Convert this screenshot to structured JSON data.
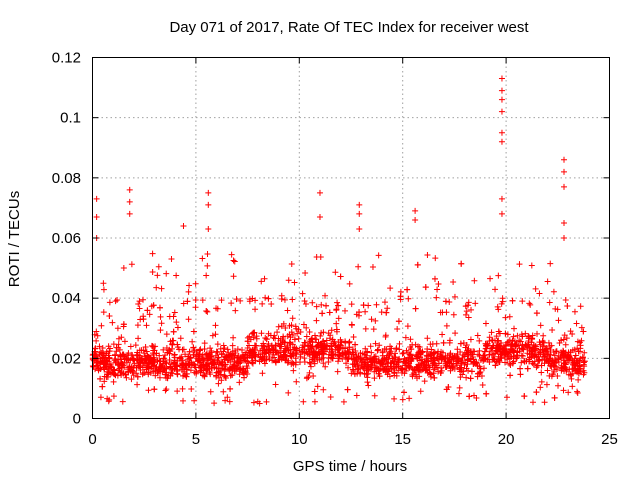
{
  "chart_data": {
    "type": "scatter",
    "title": "Day 071 of 2017, Rate Of TEC Index for receiver west",
    "xlabel": "GPS time / hours",
    "ylabel": "ROTI / TECUs",
    "xlim": [
      0,
      25
    ],
    "ylim": [
      0,
      0.12
    ],
    "xticks": [
      0,
      5,
      10,
      15,
      20,
      25
    ],
    "xtick_labels": [
      "0",
      "5",
      "10",
      "15",
      "20",
      "25"
    ],
    "yticks": [
      0,
      0.02,
      0.04,
      0.06,
      0.08,
      0.1,
      0.12
    ],
    "ytick_labels": [
      "0",
      "0.02",
      "0.04",
      "0.06",
      "0.08",
      "0.1",
      "0.12"
    ],
    "grid": true,
    "legend": "none",
    "marker": "plus",
    "series": [
      {
        "name": "ROTI",
        "color": "#ff0000",
        "x_range": [
          0,
          23.8
        ],
        "typical_range": [
          0.005,
          0.04
        ],
        "notable_points": [
          {
            "x": 0.2,
            "y": 0.073
          },
          {
            "x": 0.2,
            "y": 0.067
          },
          {
            "x": 0.2,
            "y": 0.06
          },
          {
            "x": 1.8,
            "y": 0.076
          },
          {
            "x": 1.8,
            "y": 0.072
          },
          {
            "x": 1.8,
            "y": 0.068
          },
          {
            "x": 4.4,
            "y": 0.064
          },
          {
            "x": 5.6,
            "y": 0.075
          },
          {
            "x": 5.6,
            "y": 0.071
          },
          {
            "x": 5.6,
            "y": 0.063
          },
          {
            "x": 11.0,
            "y": 0.075
          },
          {
            "x": 11.0,
            "y": 0.067
          },
          {
            "x": 12.9,
            "y": 0.071
          },
          {
            "x": 12.9,
            "y": 0.068
          },
          {
            "x": 12.9,
            "y": 0.063
          },
          {
            "x": 15.6,
            "y": 0.069
          },
          {
            "x": 15.6,
            "y": 0.066
          },
          {
            "x": 19.8,
            "y": 0.113
          },
          {
            "x": 19.8,
            "y": 0.109
          },
          {
            "x": 19.8,
            "y": 0.106
          },
          {
            "x": 19.8,
            "y": 0.102
          },
          {
            "x": 19.8,
            "y": 0.095
          },
          {
            "x": 19.8,
            "y": 0.092
          },
          {
            "x": 19.8,
            "y": 0.073
          },
          {
            "x": 19.8,
            "y": 0.068
          },
          {
            "x": 22.8,
            "y": 0.086
          },
          {
            "x": 22.8,
            "y": 0.082
          },
          {
            "x": 22.8,
            "y": 0.077
          },
          {
            "x": 22.8,
            "y": 0.065
          },
          {
            "x": 22.8,
            "y": 0.06
          }
        ]
      }
    ]
  }
}
